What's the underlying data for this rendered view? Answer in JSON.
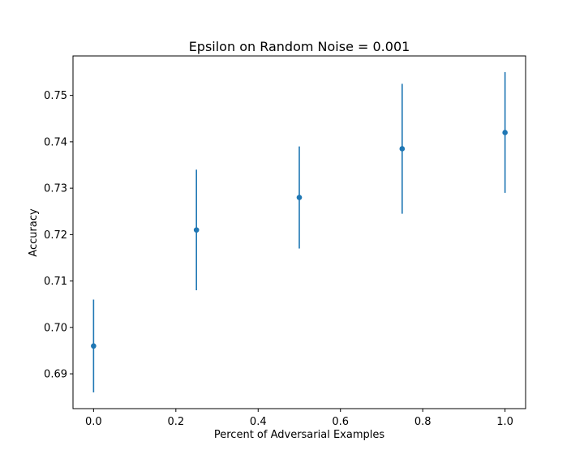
{
  "chart_data": {
    "type": "scatter",
    "title": "Epsilon on Random Noise = 0.001",
    "xlabel": "Percent of Adversarial Examples",
    "ylabel": "Accuracy",
    "xlim": [
      -0.05,
      1.05
    ],
    "ylim": [
      0.6825,
      0.7585
    ],
    "xticks": [
      0.0,
      0.2,
      0.4,
      0.6,
      0.8,
      1.0
    ],
    "xtick_labels": [
      "0.0",
      "0.2",
      "0.4",
      "0.6",
      "0.8",
      "1.0"
    ],
    "yticks": [
      0.69,
      0.7,
      0.71,
      0.72,
      0.73,
      0.74,
      0.75
    ],
    "ytick_labels": [
      "0.69",
      "0.70",
      "0.71",
      "0.72",
      "0.73",
      "0.74",
      "0.75"
    ],
    "grid": false,
    "color": "#1f77b4",
    "points": [
      {
        "x": 0.0,
        "y": 0.696,
        "yerr_low": 0.686,
        "yerr_high": 0.706
      },
      {
        "x": 0.25,
        "y": 0.721,
        "yerr_low": 0.708,
        "yerr_high": 0.734
      },
      {
        "x": 0.5,
        "y": 0.728,
        "yerr_low": 0.717,
        "yerr_high": 0.739
      },
      {
        "x": 0.75,
        "y": 0.7385,
        "yerr_low": 0.7245,
        "yerr_high": 0.7525
      },
      {
        "x": 1.0,
        "y": 0.742,
        "yerr_low": 0.729,
        "yerr_high": 0.755
      }
    ]
  }
}
